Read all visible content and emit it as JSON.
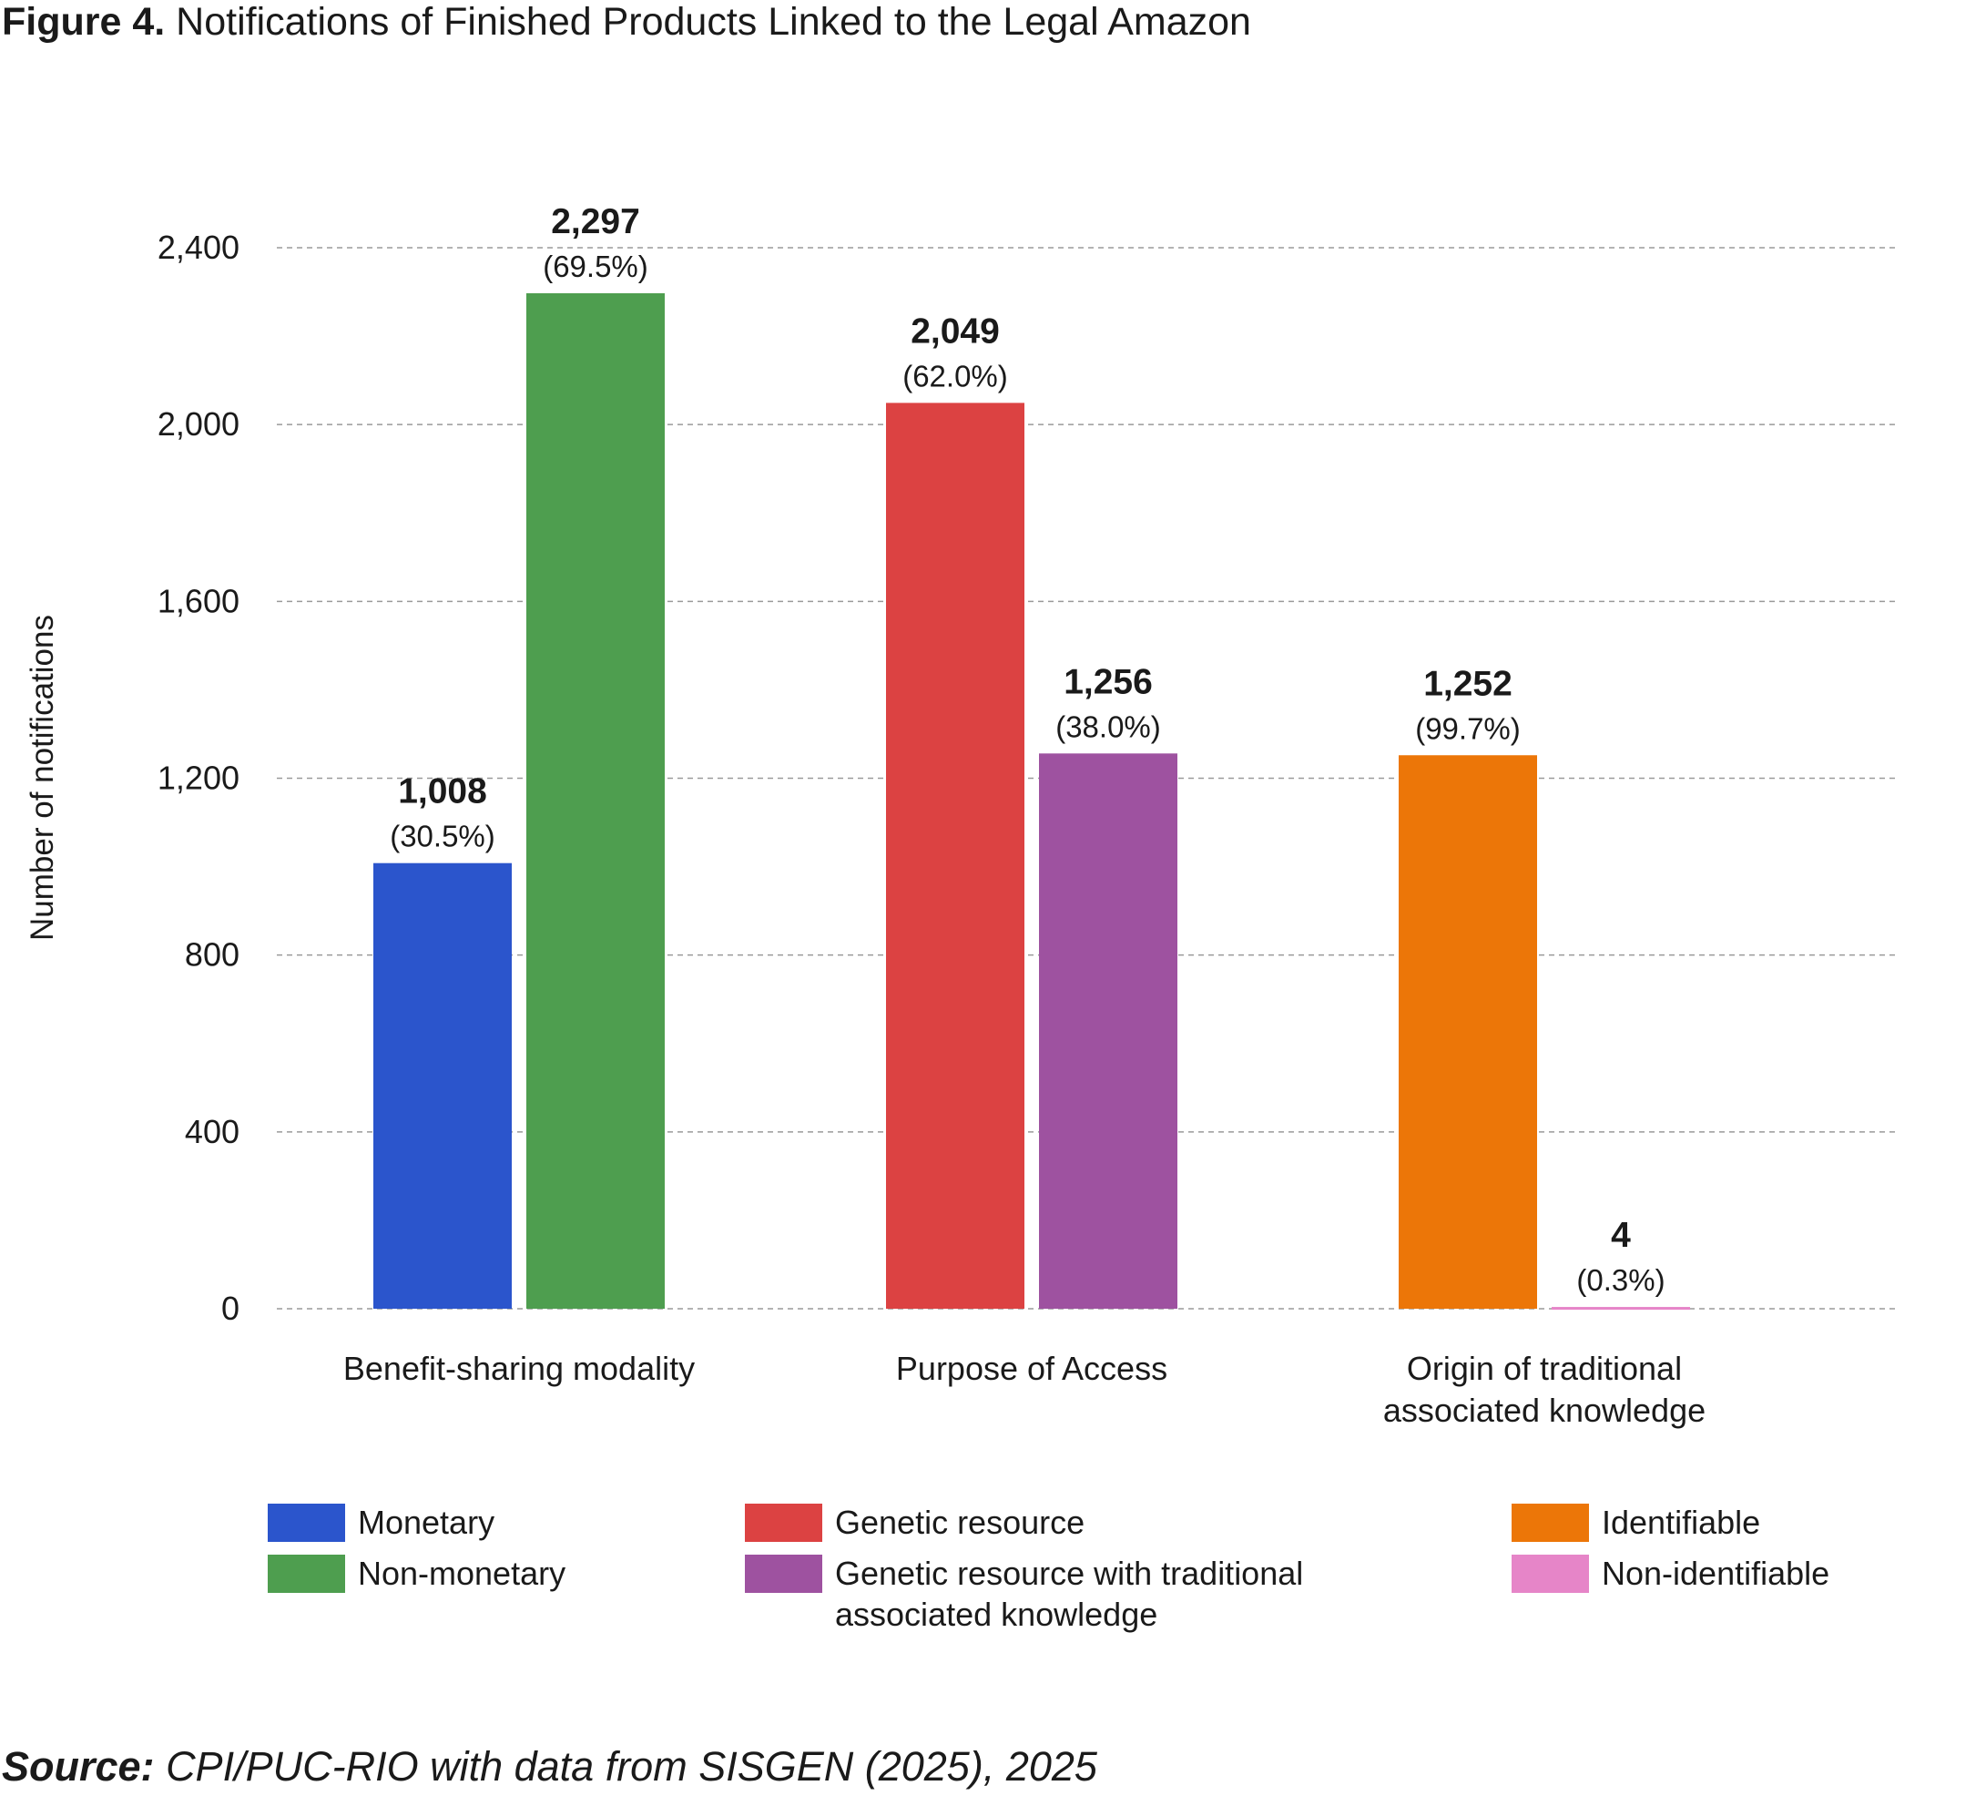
{
  "chart_data": {
    "type": "bar",
    "title_prefix": "Figure 4.",
    "title": "Notifications of Finished Products Linked to the Legal Amazon",
    "ylabel": "Number of notifications",
    "source_prefix": "Source:",
    "source": "CPI/PUC-RIO with data from SISGEN (2025), 2025",
    "categories": [
      "Benefit-sharing modality",
      "Purpose of Access",
      "Origin of traditional\nassociated knowledge"
    ],
    "series": [
      {
        "name": "Monetary",
        "color": "#2b55cc",
        "values": [
          1008,
          null,
          null
        ],
        "value_labels": [
          "1,008",
          null,
          null
        ],
        "share_labels": [
          "(30.5%)",
          null,
          null
        ]
      },
      {
        "name": "Non-monetary",
        "color": "#4e9e4f",
        "values": [
          2297,
          null,
          null
        ],
        "value_labels": [
          "2,297",
          null,
          null
        ],
        "share_labels": [
          "(69.5%)",
          null,
          null
        ]
      },
      {
        "name": "Genetic resource",
        "color": "#dc4242",
        "values": [
          null,
          2049,
          null
        ],
        "value_labels": [
          null,
          "2,049",
          null
        ],
        "share_labels": [
          null,
          "(62.0%)",
          null
        ]
      },
      {
        "name": "Genetic resource with traditional\nassociated knowledge",
        "color": "#9e52a0",
        "values": [
          null,
          1256,
          null
        ],
        "value_labels": [
          null,
          "1,256",
          null
        ],
        "share_labels": [
          null,
          "(38.0%)",
          null
        ]
      },
      {
        "name": "Identifiable",
        "color": "#ec7608",
        "values": [
          null,
          null,
          1252
        ],
        "value_labels": [
          null,
          null,
          "1,252"
        ],
        "share_labels": [
          null,
          null,
          "(99.7%)"
        ]
      },
      {
        "name": "Non-identifiable",
        "color": "#e685c8",
        "values": [
          null,
          null,
          4
        ],
        "value_labels": [
          null,
          null,
          "4"
        ],
        "share_labels": [
          null,
          null,
          "(0.3%)"
        ]
      }
    ],
    "ylim": [
      0,
      2400
    ],
    "yticks": [
      0,
      400,
      800,
      {
        "value": 1200,
        "label": "1,200"
      },
      {
        "value": 1600,
        "label": "1,600"
      },
      {
        "value": 2000,
        "label": "2,000"
      },
      {
        "value": 2400,
        "label": "2,400"
      }
    ],
    "grid": true
  }
}
